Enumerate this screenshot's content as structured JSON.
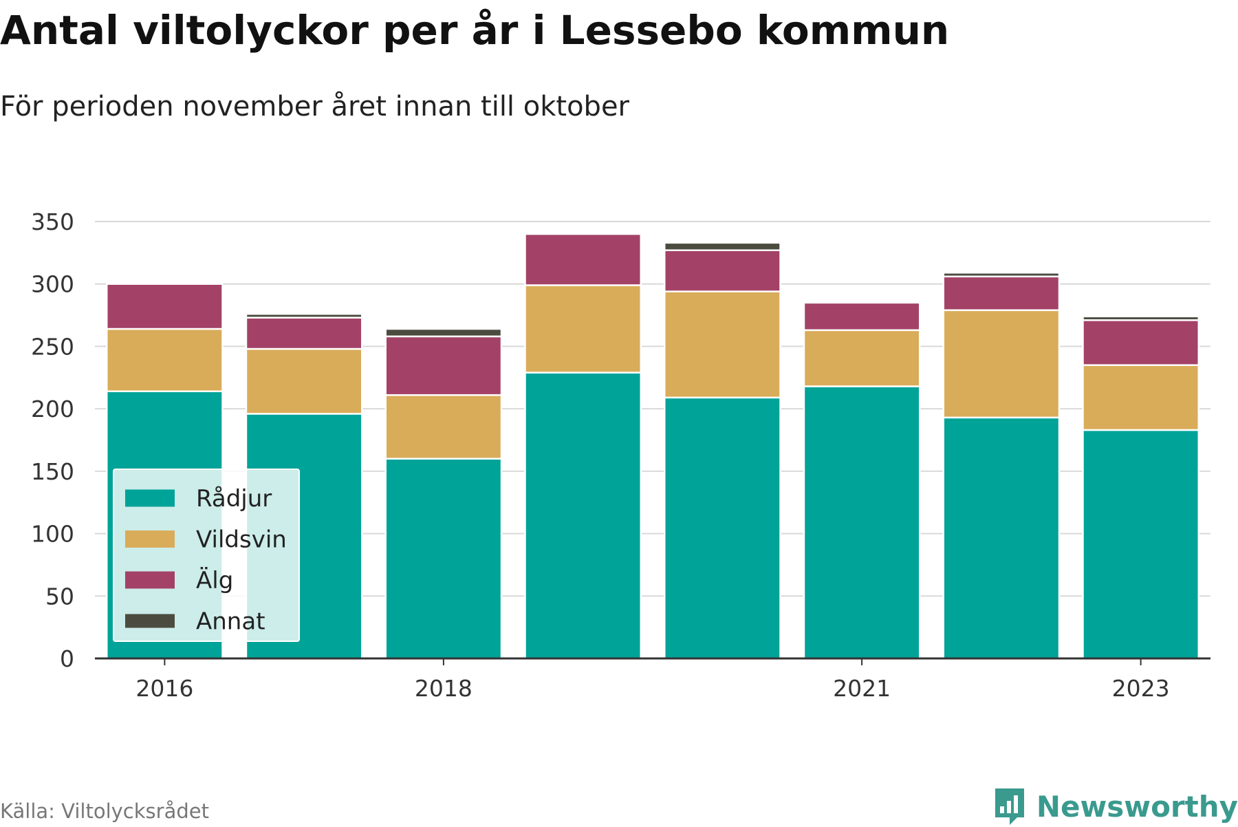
{
  "title": "Antal viltolyckor per år i Lessebo kommun",
  "subtitle": "För perioden november året innan till oktober",
  "source": "Källa: Viltolycksrådet",
  "brand": {
    "name": "Newsworthy",
    "icon": "newsworthy-logo-icon",
    "color": "#3a9a8e"
  },
  "chart_data": {
    "type": "bar",
    "stacked": true,
    "categories": [
      "2016",
      "2017",
      "2018",
      "2019",
      "2020",
      "2021",
      "2022",
      "2023"
    ],
    "x_tick_labels": [
      "2016",
      "",
      "2018",
      "",
      "",
      "2021",
      "",
      "2023"
    ],
    "series": [
      {
        "name": "Rådjur",
        "color": "#00a398",
        "values": [
          214,
          196,
          160,
          229,
          209,
          218,
          193,
          183
        ]
      },
      {
        "name": "Vildsvin",
        "color": "#d9ac5a",
        "values": [
          50,
          52,
          51,
          70,
          85,
          45,
          86,
          52
        ]
      },
      {
        "name": "Älg",
        "color": "#a34266",
        "values": [
          36,
          25,
          47,
          41,
          33,
          22,
          27,
          36
        ]
      },
      {
        "name": "Annat",
        "color": "#4b4c3f",
        "values": [
          0,
          3,
          6,
          0,
          6,
          0,
          3,
          3
        ]
      }
    ],
    "ylim": [
      0,
      350
    ],
    "yticks": [
      0,
      50,
      100,
      150,
      200,
      250,
      300,
      350
    ],
    "grid": true,
    "legend_position": "bottom-left"
  }
}
